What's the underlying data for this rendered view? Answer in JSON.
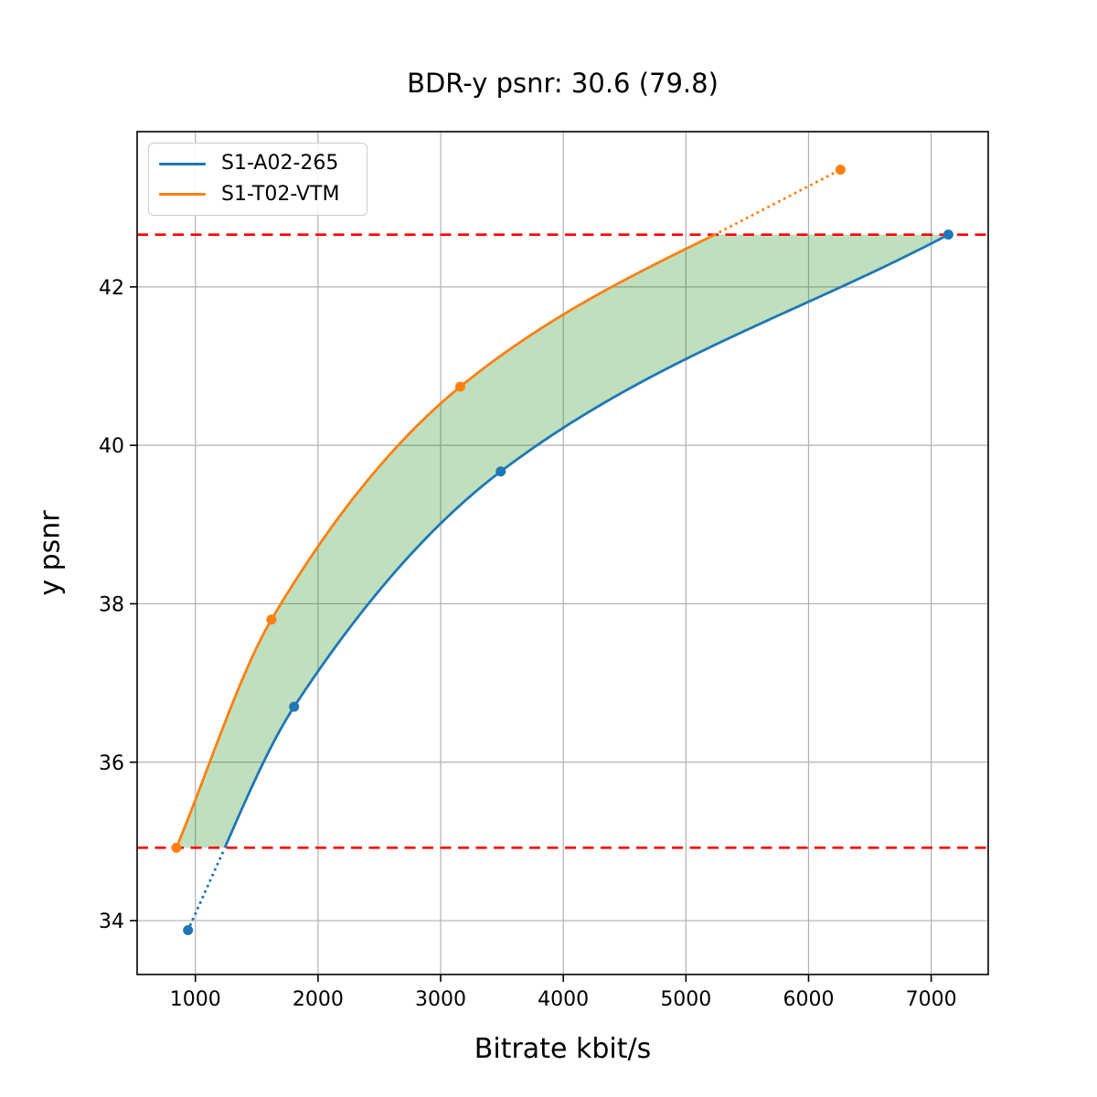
{
  "chart_data": {
    "type": "line",
    "title": "BDR-y psnr: 30.6 (79.8)",
    "xlabel": "Bitrate kbit/s",
    "ylabel": "y psnr",
    "xlim": [
      525,
      7465
    ],
    "ylim": [
      33.32,
      43.96
    ],
    "x_ticks": [
      1000,
      2000,
      3000,
      4000,
      5000,
      6000,
      7000
    ],
    "y_ticks": [
      34,
      36,
      38,
      40,
      42
    ],
    "grid": true,
    "grid_color": "#b0b0b0",
    "legend_position": "upper left",
    "series": [
      {
        "name": "S1-A02-265",
        "color": "#1f77b4",
        "points": [
          [
            940,
            33.88
          ],
          [
            1805,
            36.7
          ],
          [
            3490,
            39.67
          ],
          [
            7140,
            42.66
          ]
        ]
      },
      {
        "name": "S1-T02-VTM",
        "color": "#ff7f0e",
        "points": [
          [
            845,
            34.92
          ],
          [
            1620,
            37.8
          ],
          [
            3160,
            40.74
          ],
          [
            6260,
            43.48
          ]
        ]
      }
    ],
    "reference_lines": {
      "lower_psnr": 34.92,
      "upper_psnr": 42.66,
      "color": "#ff0000",
      "style": "dashed"
    },
    "fill_between": {
      "color": "rgba(0,128,0,0.25)"
    }
  }
}
